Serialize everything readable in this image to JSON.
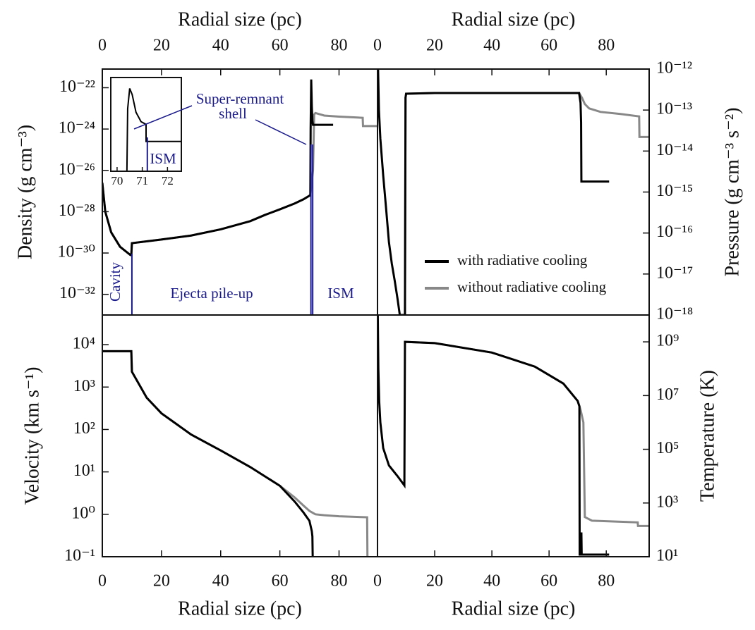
{
  "chart_data": [
    {
      "type": "line",
      "xlabel": "Radial size (pc)",
      "ylabel": "Density (g cm⁻³)",
      "log_y": true,
      "xlim": [
        0,
        93
      ],
      "ylim": [
        1e-33,
        8e-22
      ],
      "xticks": [
        0,
        20,
        40,
        60,
        80
      ],
      "yticks": [
        {
          "value": 1e-22,
          "label": "10⁻²²"
        },
        {
          "value": 1e-24,
          "label": "10⁻²⁴"
        },
        {
          "value": 1e-26,
          "label": "10⁻²⁶"
        },
        {
          "value": 1e-28,
          "label": "10⁻²⁸"
        },
        {
          "value": 1e-30,
          "label": "10⁻³⁰"
        },
        {
          "value": 1e-32,
          "label": "10⁻³²"
        }
      ],
      "series": [
        {
          "color": "#888888",
          "x": [
            0,
            1,
            3,
            6,
            9.5,
            9.8,
            10,
            20,
            30,
            40,
            50,
            55,
            60,
            65,
            68,
            70.3,
            71.2,
            71.6,
            72,
            75,
            80,
            88,
            88.1,
            93
          ],
          "values": [
            2.5e-27,
            1e-28,
            1e-29,
            2e-30,
            8e-31,
            8e-31,
            3e-30,
            4.5e-30,
            7e-30,
            1.4e-29,
            3.5e-29,
            7e-29,
            1.3e-28,
            2.5e-28,
            4e-28,
            6.3e-28,
            1e-26,
            5e-24,
            6e-24,
            4.5e-24,
            4e-24,
            3.5e-24,
            1.4e-24,
            1.4e-24
          ]
        },
        {
          "color": "#000000",
          "x": [
            0,
            1,
            3,
            6,
            9.5,
            9.8,
            10,
            20,
            30,
            40,
            50,
            55,
            60,
            65,
            68,
            70.3,
            70.4,
            70.6,
            70.8,
            71,
            71.2,
            78
          ],
          "values": [
            2.5e-27,
            1e-28,
            1e-29,
            2e-30,
            8e-31,
            8e-31,
            3e-30,
            4.5e-30,
            7e-30,
            1.4e-29,
            3.5e-29,
            7e-29,
            1.3e-28,
            2.5e-28,
            4e-28,
            6.3e-28,
            1e-24,
            2.5e-22,
            1.3e-23,
            2.5e-24,
            1.6e-24,
            1.6e-24
          ]
        }
      ],
      "boundaries": [
        10,
        70.5,
        71.1
      ],
      "annotations": [
        {
          "text": "Cavity"
        },
        {
          "text": "Ejecta pile-up"
        },
        {
          "text": "ISM"
        }
      ],
      "shell_label": [
        "Super-remnant",
        "shell"
      ]
    },
    {
      "type": "line",
      "xlabel": "Radial size (pc)",
      "ylabel": "Pressure (g cm⁻³ s⁻²)",
      "log_y": true,
      "xlim": [
        0,
        95
      ],
      "ylim": [
        1e-18,
        1e-12
      ],
      "xticks": [
        0,
        20,
        40,
        60,
        80
      ],
      "yticks": [
        {
          "value": 1e-12,
          "label": "10⁻¹²"
        },
        {
          "value": 1e-13,
          "label": "10⁻¹³"
        },
        {
          "value": 1e-14,
          "label": "10⁻¹⁴"
        },
        {
          "value": 1e-15,
          "label": "10⁻¹⁵"
        },
        {
          "value": 1e-16,
          "label": "10⁻¹⁶"
        },
        {
          "value": 1e-17,
          "label": "10⁻¹⁷"
        },
        {
          "value": 1e-18,
          "label": "10⁻¹⁸"
        }
      ],
      "legend": "lower right",
      "series": [
        {
          "name": "without radiative cooling",
          "color": "#888888",
          "x": [
            9.6,
            9.8,
            10,
            20,
            40,
            60,
            70.5,
            71.5,
            72.5,
            74,
            78,
            85,
            91.5,
            91.6,
            95
          ],
          "values": [
            1e-18,
            2e-13,
            2.5e-13,
            2.6e-13,
            2.6e-13,
            2.6e-13,
            2.6e-13,
            2e-13,
            1.4e-13,
            1.1e-13,
            9e-14,
            8e-14,
            7e-14,
            2.2e-14,
            2.2e-14
          ]
        },
        {
          "name": "with radiative cooling",
          "color": "#000000",
          "x": [
            0.2,
            0.5,
            1,
            2,
            3,
            4,
            5,
            6,
            7,
            7.8,
            9.6,
            9.8,
            10,
            20,
            40,
            60,
            70.5,
            71,
            71.2,
            71.3,
            81
          ],
          "values": [
            1e-12,
            1e-13,
            2e-14,
            2.5e-15,
            4e-16,
            6e-17,
            1.8e-17,
            7e-18,
            2.5e-18,
            1e-18,
            1e-18,
            2e-13,
            2.5e-13,
            2.6e-13,
            2.6e-13,
            2.6e-13,
            2.6e-13,
            1.5e-13,
            5e-14,
            1.8e-15,
            1.8e-15
          ]
        }
      ]
    },
    {
      "type": "line",
      "xlabel": "Radial size (pc)",
      "ylabel": "Velocity (km s⁻¹)",
      "log_y": true,
      "xlim": [
        0,
        93
      ],
      "ylim": [
        0.1,
        50000
      ],
      "xticks": [
        0,
        20,
        40,
        60,
        80
      ],
      "yticks": [
        {
          "value": 10000,
          "label": "10⁴"
        },
        {
          "value": 1000,
          "label": "10³"
        },
        {
          "value": 100,
          "label": "10²"
        },
        {
          "value": 10,
          "label": "10¹"
        },
        {
          "value": 1,
          "label": "10⁰"
        },
        {
          "value": 0.1,
          "label": "10⁻¹"
        }
      ],
      "series": [
        {
          "color": "#888888",
          "x": [
            0,
            9.8,
            10,
            15,
            20,
            30,
            40,
            50,
            60,
            65,
            68,
            70,
            72,
            75,
            80,
            89.5,
            89.6
          ],
          "values": [
            7000,
            7000,
            2300,
            560,
            240,
            76,
            32,
            13,
            4.7,
            2.5,
            1.6,
            1.2,
            1.0,
            0.95,
            0.9,
            0.85,
            0.1
          ]
        },
        {
          "color": "#000000",
          "x": [
            0,
            9.8,
            10,
            15,
            20,
            30,
            40,
            50,
            60,
            65,
            68,
            70,
            70.8,
            71,
            71.1
          ],
          "values": [
            7000,
            7000,
            2300,
            560,
            240,
            76,
            32,
            13,
            4.7,
            2,
            1.1,
            0.7,
            0.4,
            0.3,
            0.1
          ]
        }
      ]
    },
    {
      "type": "line",
      "xlabel": "Radial size (pc)",
      "ylabel": "Temperature (K)",
      "log_y": true,
      "xlim": [
        0,
        95
      ],
      "ylim": [
        10,
        10000000000.0
      ],
      "xticks": [
        0,
        20,
        40,
        60,
        80
      ],
      "yticks": [
        {
          "value": 1000000000.0,
          "label": "10⁹"
        },
        {
          "value": 10000000.0,
          "label": "10⁷"
        },
        {
          "value": 100000,
          "label": "10⁵"
        },
        {
          "value": 1000,
          "label": "10³"
        },
        {
          "value": 10,
          "label": "10¹"
        }
      ],
      "series": [
        {
          "color": "#888888",
          "x": [
            9.6,
            20,
            40,
            55,
            65,
            70,
            71,
            72,
            72.5,
            75,
            85,
            91,
            91.1,
            95
          ],
          "values": [
            1000000000.0,
            900000000.0,
            400000000.0,
            120000000.0,
            28000000.0,
            6300000.0,
            3000000.0,
            1000000.0,
            300,
            220,
            200,
            190,
            140,
            140
          ]
        },
        {
          "color": "#000000",
          "x": [
            0.1,
            0.3,
            0.6,
            1,
            2,
            4,
            7,
            9.4,
            9.6,
            20,
            40,
            55,
            65,
            70,
            70.6,
            70.7,
            71.2,
            71.3,
            71.4,
            81
          ],
          "values": [
            10000000000.0,
            100000000.0,
            6000000.0,
            1000000.0,
            110000,
            25000,
            10000,
            4500,
            1000000000.0,
            900000000.0,
            400000000.0,
            120000000.0,
            28000000.0,
            6300000.0,
            4000000.0,
            12,
            12,
            80,
            12,
            12
          ]
        }
      ]
    },
    {
      "type": "line",
      "log_y": true,
      "xlim": [
        69.75,
        72.55
      ],
      "ylim": [
        1e-27,
        1e-21
      ],
      "xticks": [
        70,
        71,
        72
      ],
      "series": [
        {
          "color": "#000000",
          "x": [
            70.39,
            70.42,
            70.5,
            70.6,
            70.75,
            70.95,
            71.15,
            71.15,
            72.55
          ],
          "values": [
            1e-27,
            1e-23,
            2e-22,
            8e-23,
            6e-24,
            1.5e-24,
            1e-24,
            8e-26,
            8e-26
          ]
        }
      ],
      "boundaries": [
        71.2
      ],
      "annotations": [
        {
          "text": "ISM"
        }
      ]
    }
  ]
}
